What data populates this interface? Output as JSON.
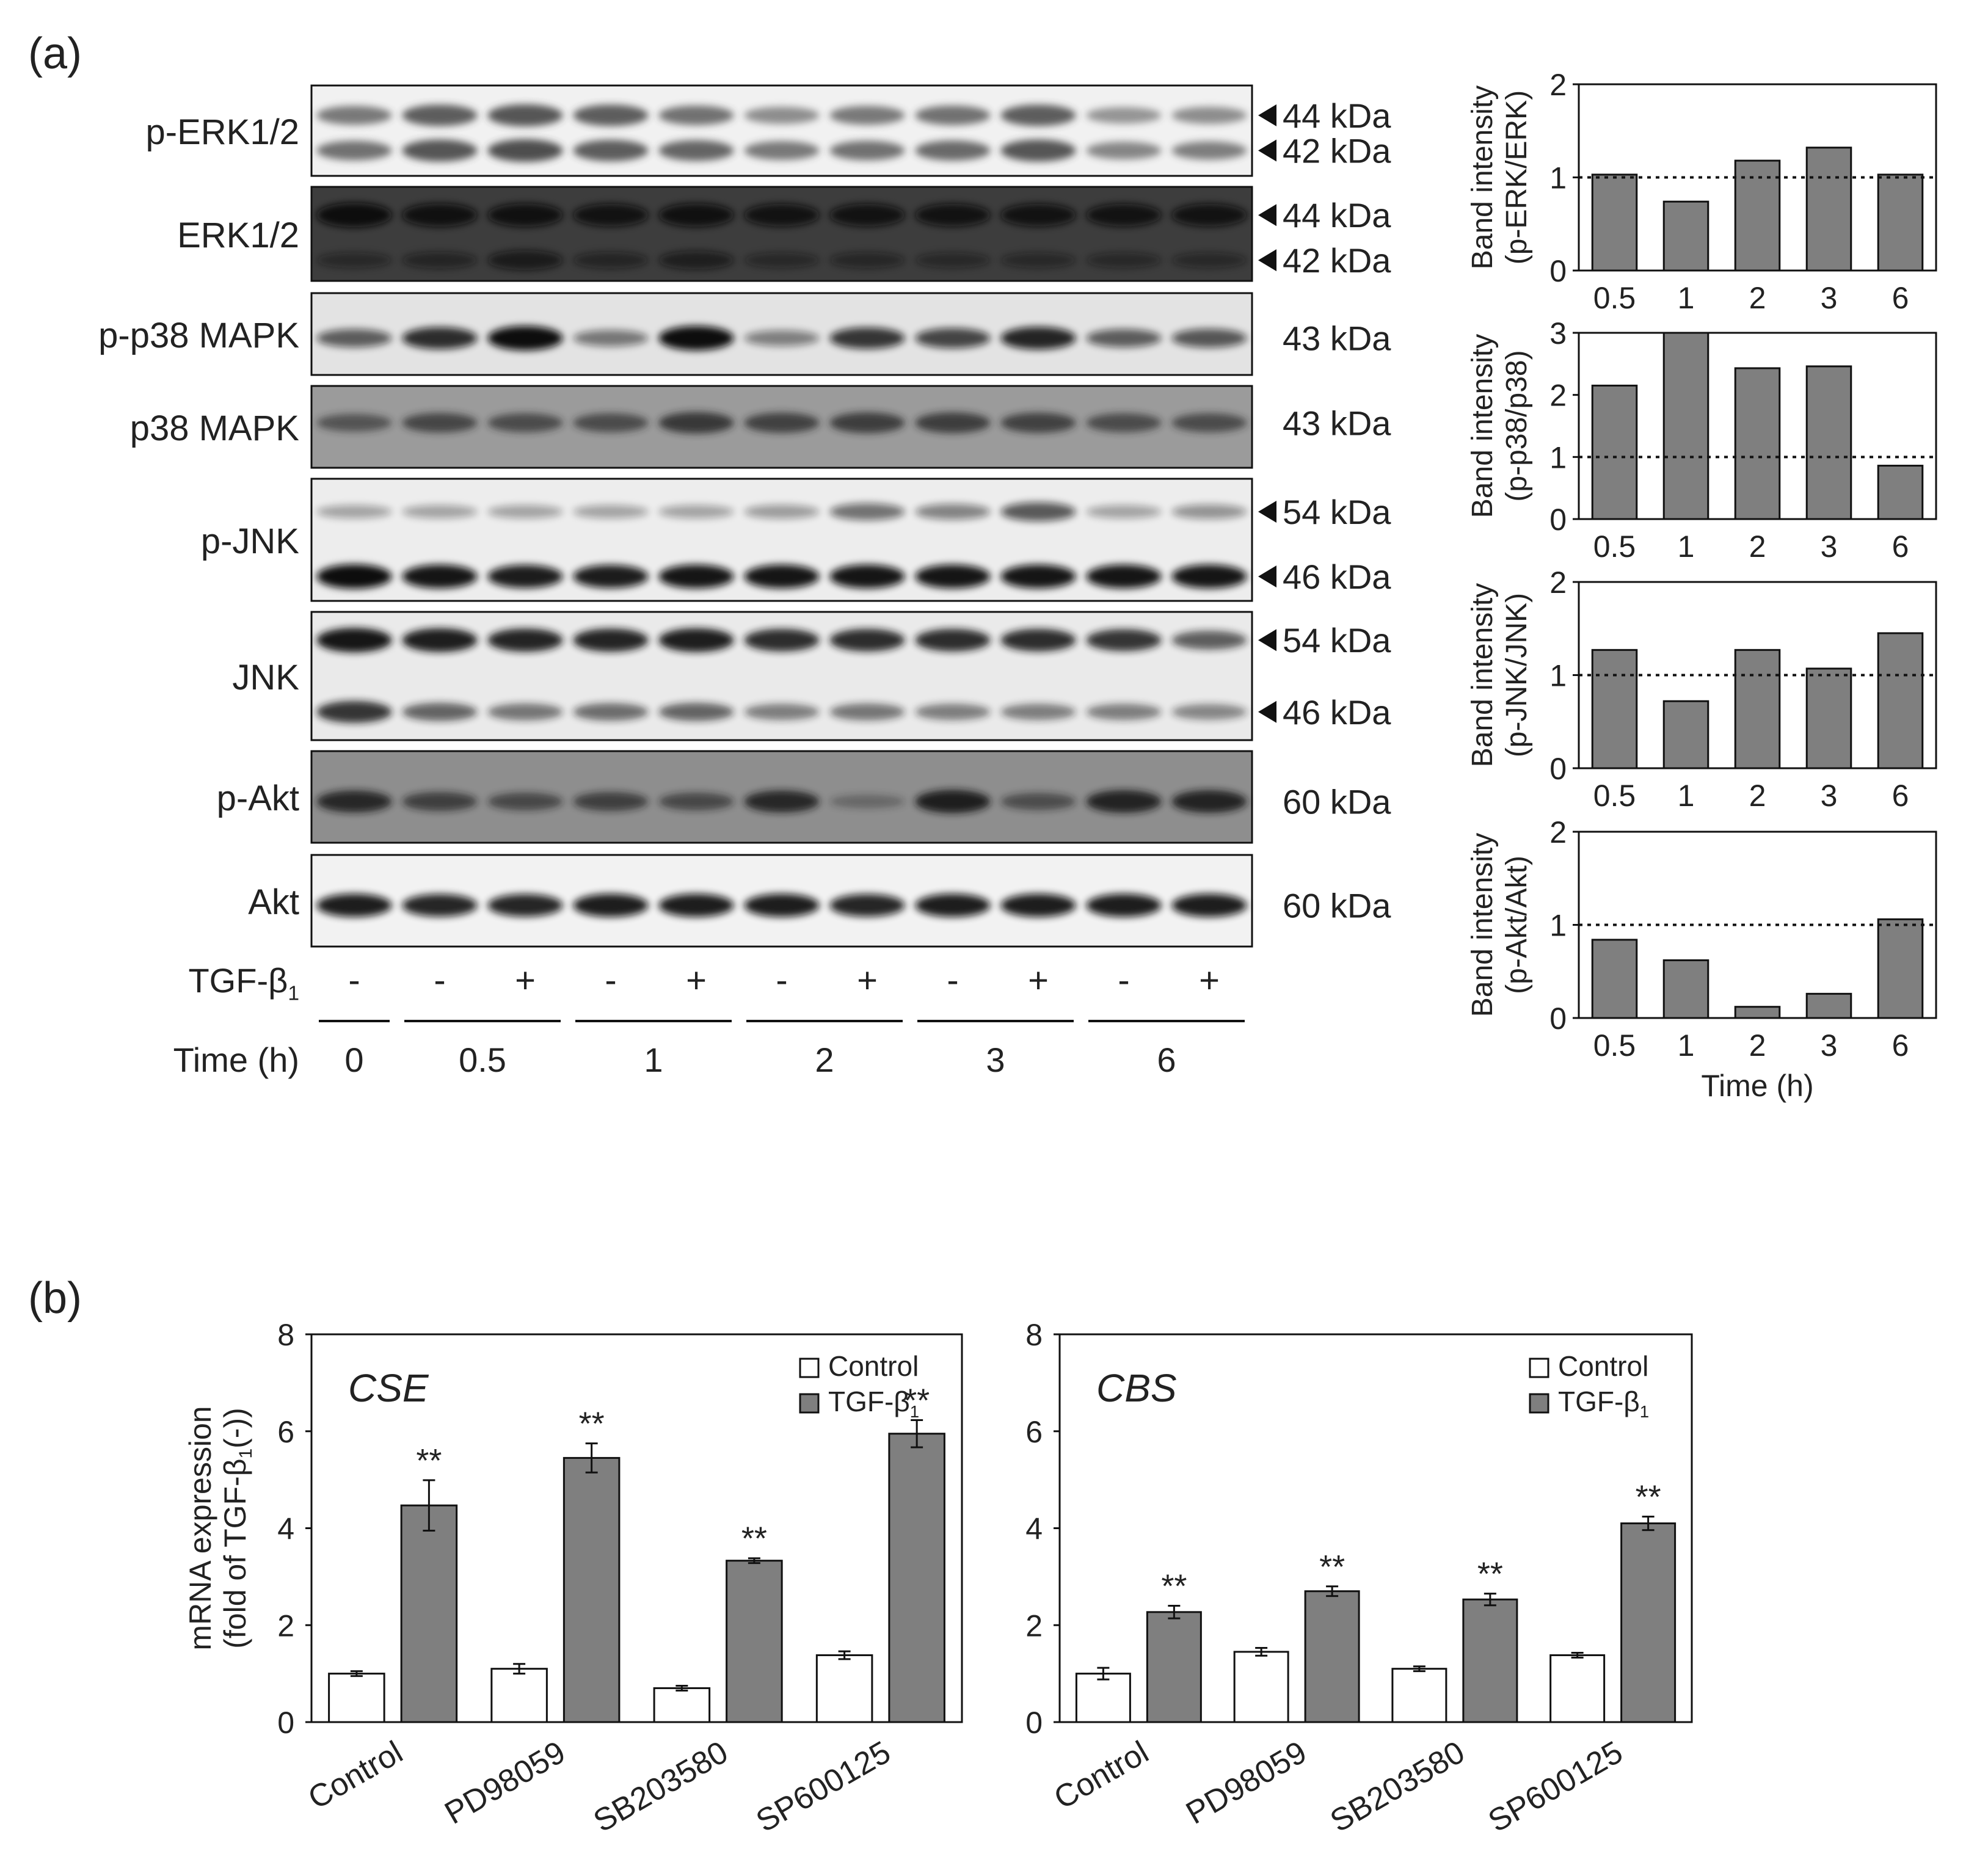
{
  "panel_labels": {
    "a": "(a)",
    "b": "(b)"
  },
  "blots": [
    {
      "name": "p-ERK1/2",
      "bg": "#f1f1f1",
      "band": "#3a3a3a",
      "markers": [
        {
          "label": "44 kDa",
          "arrow": true
        },
        {
          "label": "42 kDa",
          "arrow": true
        }
      ],
      "bands": [
        [
          0.55,
          0.75,
          0.8,
          0.75,
          0.6,
          0.4,
          0.55,
          0.6,
          0.75,
          0.35,
          0.4
        ],
        [
          0.6,
          0.8,
          0.85,
          0.75,
          0.7,
          0.55,
          0.6,
          0.65,
          0.8,
          0.45,
          0.5
        ]
      ]
    },
    {
      "name": "ERK1/2",
      "bg": "#3d3d3d",
      "band": "#0a0a0a",
      "markers": [
        {
          "label": "44 kDa",
          "arrow": true
        },
        {
          "label": "42 kDa",
          "arrow": true
        }
      ],
      "bands": [
        [
          1,
          0.9,
          0.9,
          0.85,
          0.9,
          0.85,
          0.85,
          0.85,
          0.85,
          0.85,
          0.85
        ],
        [
          0.25,
          0.35,
          0.6,
          0.35,
          0.5,
          0.25,
          0.3,
          0.25,
          0.25,
          0.25,
          0.25
        ]
      ]
    },
    {
      "name": "p-p38 MAPK",
      "bg": "#e3e3e3",
      "band": "#111111",
      "markers": [
        {
          "label": "43 kDa",
          "arrow": false
        }
      ],
      "bands": [
        [
          0.5,
          0.8,
          1,
          0.35,
          1,
          0.3,
          0.75,
          0.65,
          0.85,
          0.5,
          0.55
        ]
      ]
    },
    {
      "name": "p38 MAPK",
      "bg": "#9b9b9b",
      "band": "#222222",
      "markers": [
        {
          "label": "43 kDa",
          "arrow": false
        }
      ],
      "bands": [
        [
          0.45,
          0.6,
          0.55,
          0.55,
          0.75,
          0.65,
          0.7,
          0.7,
          0.65,
          0.55,
          0.55
        ]
      ]
    },
    {
      "name": "p-JNK",
      "bg": "#ededed",
      "band": "#101010",
      "markers": [
        {
          "label": "54 kDa",
          "arrow": true
        },
        {
          "label": "46 kDa",
          "arrow": true
        }
      ],
      "bands": [
        [
          0.1,
          0.1,
          0.1,
          0.1,
          0.1,
          0.15,
          0.4,
          0.3,
          0.55,
          0.1,
          0.2
        ],
        [
          1,
          0.95,
          0.9,
          0.9,
          0.95,
          0.95,
          0.95,
          0.95,
          0.95,
          0.95,
          0.95
        ]
      ]
    },
    {
      "name": "JNK",
      "bg": "#eaeaea",
      "band": "#121212",
      "markers": [
        {
          "label": "54 kDa",
          "arrow": true
        },
        {
          "label": "46 kDa",
          "arrow": true
        }
      ],
      "bands": [
        [
          1,
          0.95,
          0.9,
          0.9,
          0.95,
          0.85,
          0.85,
          0.85,
          0.85,
          0.8,
          0.55
        ],
        [
          0.8,
          0.5,
          0.4,
          0.45,
          0.5,
          0.35,
          0.4,
          0.35,
          0.35,
          0.35,
          0.3
        ]
      ]
    },
    {
      "name": "p-Akt",
      "bg": "#8e8e8e",
      "band": "#141414",
      "markers": [
        {
          "label": "60 kDa",
          "arrow": false
        }
      ],
      "bands": [
        [
          0.8,
          0.55,
          0.45,
          0.55,
          0.45,
          0.8,
          0.1,
          0.9,
          0.4,
          0.85,
          0.85
        ]
      ]
    },
    {
      "name": "Akt",
      "bg": "#f2f2f2",
      "band": "#0d0d0d",
      "markers": [
        {
          "label": "60 kDa",
          "arrow": false
        }
      ],
      "bands": [
        [
          0.9,
          0.85,
          0.85,
          0.9,
          0.9,
          0.9,
          0.85,
          0.9,
          0.9,
          0.9,
          0.9
        ]
      ]
    }
  ],
  "treatment": {
    "label": "TGF-β",
    "subscript": "1",
    "signs": [
      "-",
      "-",
      "+",
      "-",
      "+",
      "-",
      "+",
      "-",
      "+",
      "-",
      "+"
    ]
  },
  "time": {
    "label": "Time (h)",
    "groups": [
      "0",
      "0.5",
      "1",
      "2",
      "3",
      "6"
    ]
  },
  "chart_data": [
    {
      "type": "bar",
      "categories": [
        "0.5",
        "1",
        "2",
        "3",
        "6"
      ],
      "values": [
        1.03,
        0.74,
        1.18,
        1.32,
        1.03
      ],
      "ylabel": [
        "Band intensity",
        "(p-ERK/ERK)"
      ],
      "ylim": [
        0,
        2
      ],
      "yticks": [
        0,
        1,
        2
      ],
      "reference_line": 1,
      "xlabel": "",
      "bar_color": "#7f7f7f"
    },
    {
      "type": "bar",
      "categories": [
        "0.5",
        "1",
        "2",
        "3",
        "6"
      ],
      "values": [
        2.15,
        3.0,
        2.43,
        2.46,
        0.86
      ],
      "ylabel": [
        "Band intensity",
        "(p-p38/p38)"
      ],
      "ylim": [
        0,
        3
      ],
      "yticks": [
        0,
        1,
        2,
        3
      ],
      "reference_line": 1,
      "xlabel": "",
      "bar_color": "#7f7f7f"
    },
    {
      "type": "bar",
      "categories": [
        "0.5",
        "1",
        "2",
        "3",
        "6"
      ],
      "values": [
        1.27,
        0.72,
        1.27,
        1.07,
        1.45
      ],
      "ylabel": [
        "Band intensity",
        "(p-JNK/JNK)"
      ],
      "ylim": [
        0,
        2
      ],
      "yticks": [
        0,
        1,
        2
      ],
      "reference_line": 1,
      "xlabel": "",
      "bar_color": "#7f7f7f"
    },
    {
      "type": "bar",
      "categories": [
        "0.5",
        "1",
        "2",
        "3",
        "6"
      ],
      "values": [
        0.84,
        0.62,
        0.12,
        0.26,
        1.06
      ],
      "ylabel": [
        "Band intensity",
        "(p-Akt/Akt)"
      ],
      "ylim": [
        0,
        2
      ],
      "yticks": [
        0,
        1,
        2
      ],
      "reference_line": 1,
      "xlabel": "Time (h)",
      "bar_color": "#7f7f7f"
    },
    {
      "type": "bar",
      "title": "CSE",
      "categories": [
        "Control",
        "PD98059",
        "SB203580",
        "SP600125"
      ],
      "series": [
        {
          "name": "Control",
          "values": [
            1.0,
            1.1,
            0.7,
            1.38
          ],
          "errors": [
            0.05,
            0.1,
            0.05,
            0.08
          ],
          "color": "#ffffff"
        },
        {
          "name": "TGF-β1",
          "values": [
            4.47,
            5.45,
            3.33,
            5.95
          ],
          "errors": [
            0.52,
            0.3,
            0.05,
            0.28
          ],
          "color": "#7f7f7f"
        }
      ],
      "significance": "**",
      "ylabel": [
        "mRNA expression",
        "(fold of TGF-β",
        "1",
        "(-))"
      ],
      "ylim": [
        0,
        8
      ],
      "yticks": [
        0,
        2,
        4,
        6,
        8
      ],
      "legend_placement": "top-right",
      "legend_sub": "1"
    },
    {
      "type": "bar",
      "title": "CBS",
      "categories": [
        "Control",
        "PD98059",
        "SB203580",
        "SP600125"
      ],
      "series": [
        {
          "name": "Control",
          "values": [
            1.0,
            1.45,
            1.1,
            1.38
          ],
          "errors": [
            0.12,
            0.08,
            0.05,
            0.05
          ],
          "color": "#ffffff"
        },
        {
          "name": "TGF-β1",
          "values": [
            2.27,
            2.7,
            2.53,
            4.1
          ],
          "errors": [
            0.13,
            0.1,
            0.12,
            0.14
          ],
          "color": "#7f7f7f"
        }
      ],
      "significance": "**",
      "ylabel": [],
      "ylim": [
        0,
        8
      ],
      "yticks": [
        0,
        2,
        4,
        6,
        8
      ],
      "legend_placement": "top-right",
      "legend_sub": "1"
    }
  ]
}
